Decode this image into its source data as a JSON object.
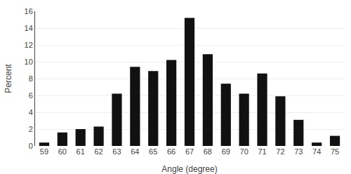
{
  "chart_data": {
    "type": "bar",
    "categories": [
      59,
      60,
      61,
      62,
      63,
      64,
      65,
      66,
      67,
      68,
      69,
      70,
      71,
      72,
      73,
      74,
      75
    ],
    "values": [
      0.4,
      1.6,
      2.0,
      2.3,
      6.2,
      9.4,
      8.9,
      10.2,
      15.2,
      10.9,
      7.4,
      6.2,
      8.6,
      5.9,
      3.1,
      0.4,
      1.2
    ],
    "color": "#111111",
    "xlabel": "Angle (degree)",
    "ylabel": "Percent",
    "ylim": [
      0,
      16
    ],
    "yticks": [
      0,
      2,
      4,
      6,
      8,
      10,
      12,
      14,
      16
    ],
    "grid": true
  }
}
